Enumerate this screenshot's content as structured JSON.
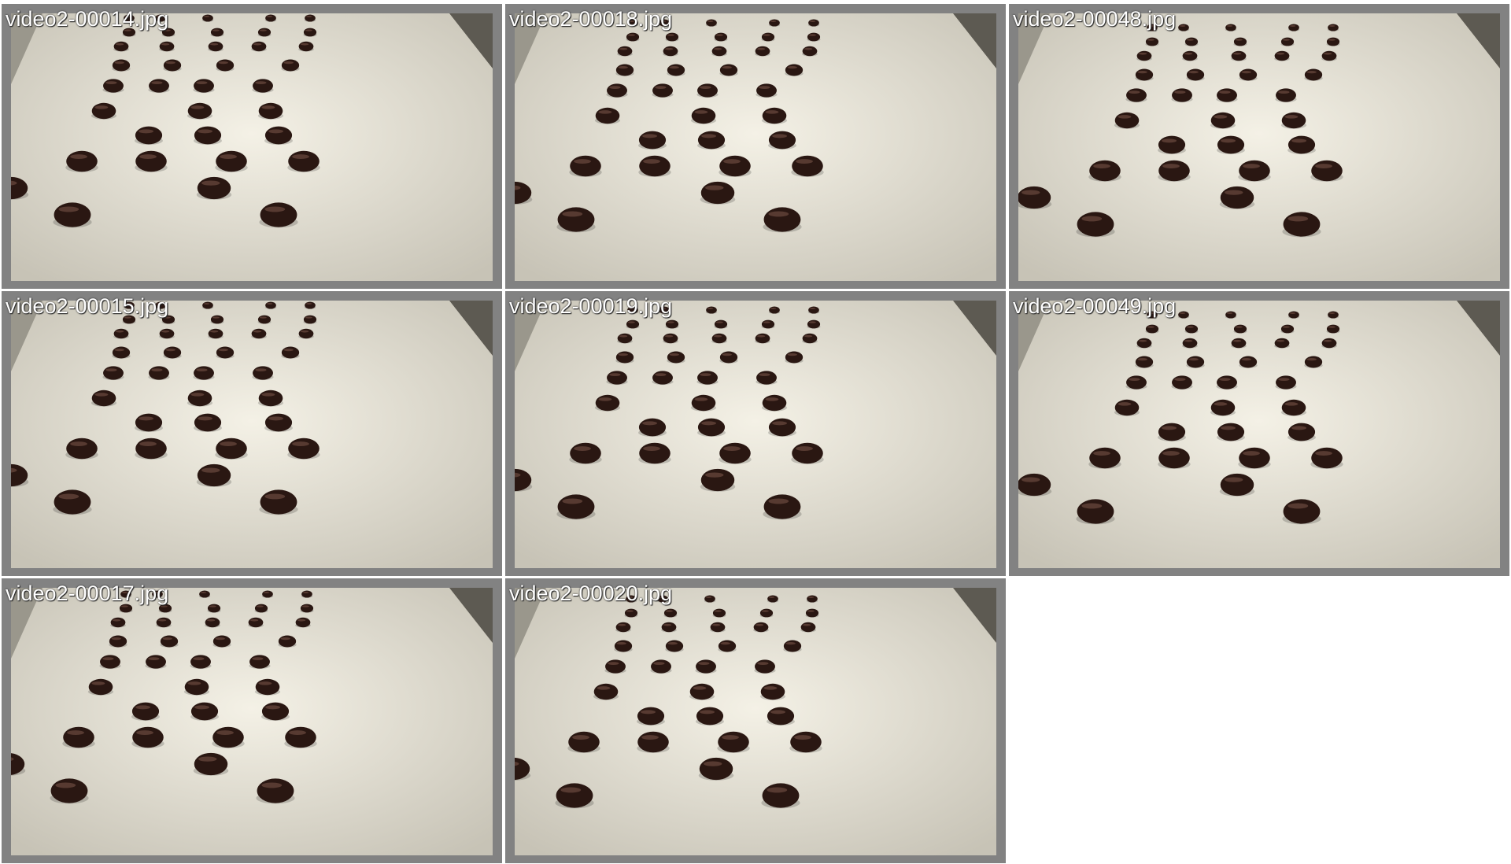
{
  "gallery": {
    "tiles": [
      {
        "filename": "video2-00014.jpg"
      },
      {
        "filename": "video2-00018.jpg"
      },
      {
        "filename": "video2-00048.jpg"
      },
      {
        "filename": "video2-00015.jpg"
      },
      {
        "filename": "video2-00019.jpg"
      },
      {
        "filename": "video2-00049.jpg"
      },
      {
        "filename": "video2-00017.jpg"
      },
      {
        "filename": "video2-00020.jpg"
      }
    ]
  },
  "colors": {
    "tile_border": "#828282",
    "belt_light": "#f4f1e6",
    "belt_shadow": "#c7c3b6",
    "chocolate": "#2a1712",
    "chocolate_highlight": "#6b4a3f",
    "label_text": "#ffffff"
  }
}
